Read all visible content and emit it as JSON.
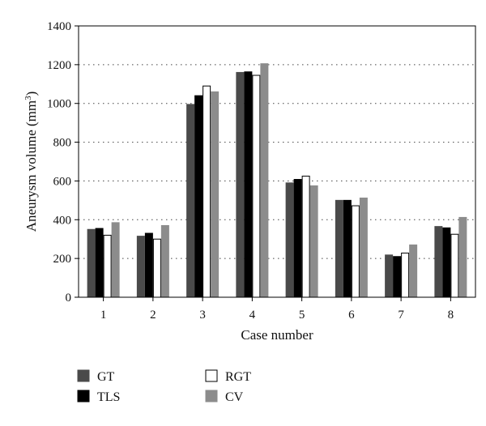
{
  "chart_data": {
    "type": "bar",
    "xlabel": "Case number",
    "ylabel": "Aneurysm volume (mm",
    "ylabel_sup": "3",
    "ylabel_suffix": ")",
    "ylim": [
      0,
      1400
    ],
    "yticks": [
      "0",
      "200",
      "400",
      "600",
      "800",
      "1000",
      "1200",
      "1400"
    ],
    "grid": "horizontal-dotted",
    "legend_placement": "bottom",
    "categories": [
      "1",
      "2",
      "3",
      "4",
      "5",
      "6",
      "7",
      "8"
    ],
    "series": [
      {
        "name": "GT",
        "color": "#4a4a4a",
        "stroke": "#4a4a4a",
        "values": [
          350,
          315,
          995,
          1160,
          590,
          500,
          218,
          365
        ]
      },
      {
        "name": "TLS",
        "color": "#000000",
        "stroke": "#000000",
        "values": [
          355,
          330,
          1040,
          1163,
          608,
          500,
          210,
          358
        ]
      },
      {
        "name": "RGT",
        "color": "#ffffff",
        "stroke": "#000000",
        "values": [
          320,
          300,
          1090,
          1145,
          625,
          472,
          228,
          325
        ]
      },
      {
        "name": "CV",
        "color": "#8c8c8c",
        "stroke": "#8c8c8c",
        "values": [
          385,
          370,
          1060,
          1205,
          575,
          512,
          270,
          412
        ]
      }
    ]
  }
}
